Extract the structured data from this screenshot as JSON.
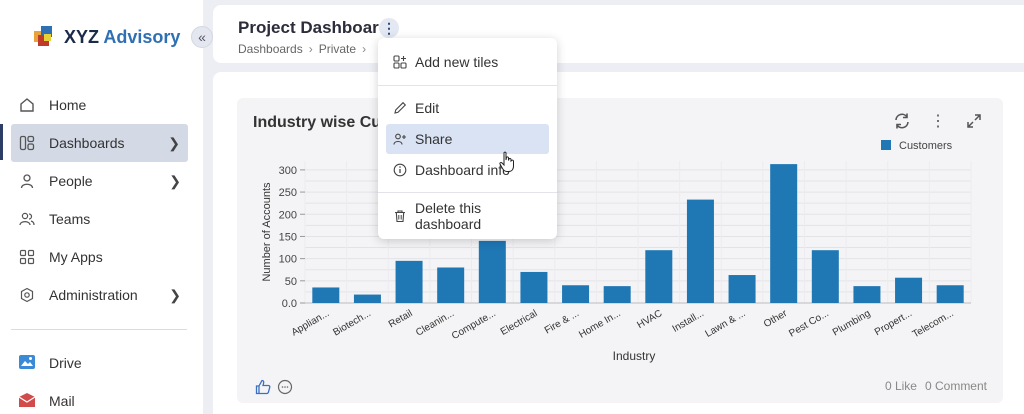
{
  "brand": {
    "name_part1": "XYZ",
    "name_part2": "Advisory"
  },
  "sidebar": {
    "items": [
      {
        "label": "Home",
        "icon": "home-icon"
      },
      {
        "label": "Dashboards",
        "icon": "dashboards-icon"
      },
      {
        "label": "People",
        "icon": "people-icon"
      },
      {
        "label": "Teams",
        "icon": "teams-icon"
      },
      {
        "label": "My Apps",
        "icon": "apps-icon"
      },
      {
        "label": "Administration",
        "icon": "admin-icon"
      }
    ],
    "apps": [
      {
        "label": "Drive",
        "icon": "drive-icon"
      },
      {
        "label": "Mail",
        "icon": "mail-icon"
      }
    ]
  },
  "header": {
    "title": "Project Dashboard",
    "breadcrumb": [
      "Dashboards",
      "Private"
    ]
  },
  "menu": {
    "items": [
      {
        "label": "Add new tiles",
        "icon": "add-tiles-icon"
      },
      {
        "label": "Edit",
        "icon": "pencil-icon"
      },
      {
        "label": "Share",
        "icon": "share-user-icon"
      },
      {
        "label": "Dashboard info",
        "icon": "info-icon"
      },
      {
        "label": "Delete this dashboard",
        "icon": "trash-icon"
      }
    ]
  },
  "card": {
    "title": "Industry wise Customers",
    "likes": "0 Like",
    "comments": "0 Comment"
  },
  "chart_data": {
    "type": "bar",
    "categories": [
      "Applian...",
      "Biotech...",
      "Retail",
      "Cleanin...",
      "Compute...",
      "Electrical",
      "Fire & ...",
      "Home In...",
      "HVAC",
      "Install...",
      "Lawn & ...",
      "Other",
      "Pest Co...",
      "Plumbing",
      "Propert...",
      "Telecom..."
    ],
    "series": [
      {
        "name": "Customers",
        "values": [
          35,
          19,
          95,
          80,
          140,
          70,
          40,
          38,
          119,
          233,
          63,
          313,
          119,
          38,
          57,
          40
        ]
      }
    ],
    "xlabel": "Industry",
    "ylabel": "Number of Accounts",
    "ylim": [
      0,
      320
    ],
    "yticks": [
      "0.0",
      "50",
      "100",
      "150",
      "200",
      "250",
      "300"
    ],
    "grid": true,
    "legend": "top-right",
    "bar_color": "#1f77b4"
  }
}
